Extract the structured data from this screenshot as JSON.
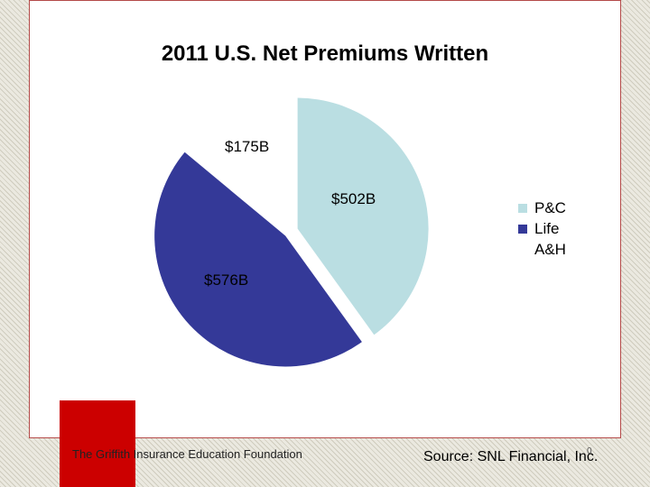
{
  "slide": {
    "footer_left": "The Griffith Insurance Education Foundation",
    "footer_right": "Source: SNL Financial, Inc.",
    "page_number": "0"
  },
  "chart_data": {
    "type": "pie",
    "title": "2011 U.S. Net Premiums Written",
    "categories": [
      "P&C",
      "Life",
      "A&H"
    ],
    "values": [
      502,
      576,
      175
    ],
    "data_labels": [
      "$502B",
      "$576B",
      "$175B"
    ],
    "colors": [
      "#badee2",
      "#343998",
      "#ffffff"
    ],
    "legend_position": "right"
  }
}
